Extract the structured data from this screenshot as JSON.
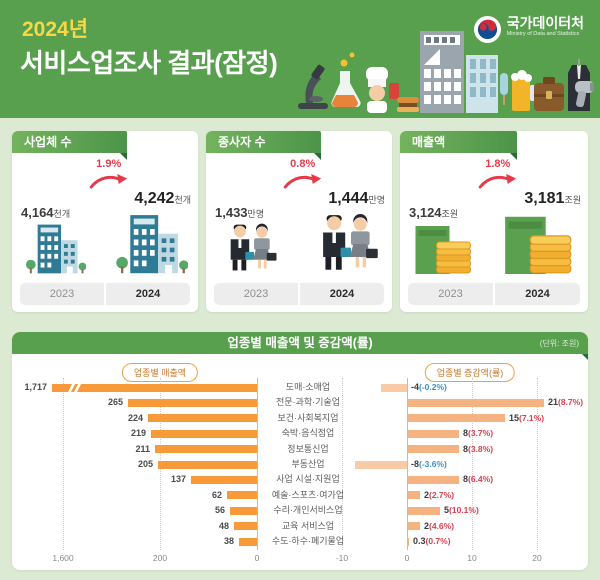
{
  "header": {
    "year_badge": "2024년",
    "title": "서비스업조사 결과(잠정)",
    "logo_name": "국가데이터처",
    "logo_subtitle": "Ministry of Data and Statistics"
  },
  "stat_cards": [
    {
      "title": "사업체 수",
      "change_pct": "1.9%",
      "icon": "buildings",
      "prev_year": "2023",
      "prev_value": "4,164",
      "prev_unit": "천개",
      "curr_year": "2024",
      "curr_value": "4,242",
      "curr_unit": "천개"
    },
    {
      "title": "종사자 수",
      "change_pct": "0.8%",
      "icon": "workers",
      "prev_year": "2023",
      "prev_value": "1,433",
      "prev_unit": "만명",
      "curr_year": "2024",
      "curr_value": "1,444",
      "curr_unit": "만명"
    },
    {
      "title": "매출액",
      "change_pct": "1.8%",
      "icon": "money",
      "prev_year": "2023",
      "prev_value": "3,124",
      "prev_unit": "조원",
      "curr_year": "2024",
      "curr_value": "3,181",
      "curr_unit": "조원"
    }
  ],
  "chart_section": {
    "title": "업종별 매출액 및 증감액(률)",
    "unit_note": "(단위: 조원)",
    "legend_left": "업종별 매출액",
    "legend_right": "업종별 증감액(률)"
  },
  "chart_data": {
    "type": "bar",
    "title": "업종별 매출액 및 증감액(률)",
    "unit": "조원",
    "categories": [
      "도매·소매업",
      "전문·과학·기술업",
      "보건·사회복지업",
      "숙박·음식점업",
      "정보통신업",
      "부동산업",
      "사업 시설·지원업",
      "예술·스포츠·여가업",
      "수리·개인서비스업",
      "교육 서비스업",
      "수도·하수·폐기물업"
    ],
    "series": [
      {
        "name": "업종별 매출액",
        "values": [
          1717,
          265,
          224,
          219,
          211,
          205,
          137,
          62,
          56,
          48,
          38
        ]
      },
      {
        "name": "업종별 증감액",
        "values": [
          -4,
          21,
          15,
          8,
          8,
          -8,
          8,
          2,
          5,
          2,
          0.3
        ]
      },
      {
        "name": "업종별 증감률(%)",
        "values": [
          -0.2,
          8.7,
          7.1,
          3.7,
          3.8,
          -3.6,
          6.4,
          2.7,
          10.1,
          4.6,
          0.7
        ]
      }
    ],
    "rows": [
      {
        "cat": "도매·소매업",
        "sales_label": "1,717",
        "change_label": "-4",
        "pct_label": "(-0.2%)"
      },
      {
        "cat": "전문·과학·기술업",
        "sales_label": "265",
        "change_label": "21",
        "pct_label": "(8.7%)"
      },
      {
        "cat": "보건·사회복지업",
        "sales_label": "224",
        "change_label": "15",
        "pct_label": "(7.1%)"
      },
      {
        "cat": "숙박·음식점업",
        "sales_label": "219",
        "change_label": "8",
        "pct_label": "(3.7%)"
      },
      {
        "cat": "정보통신업",
        "sales_label": "211",
        "change_label": "8",
        "pct_label": "(3.8%)"
      },
      {
        "cat": "부동산업",
        "sales_label": "205",
        "change_label": "-8",
        "pct_label": "(-3.6%)"
      },
      {
        "cat": "사업 시설·지원업",
        "sales_label": "137",
        "change_label": "8",
        "pct_label": "(6.4%)"
      },
      {
        "cat": "예술·스포츠·여가업",
        "sales_label": "62",
        "change_label": "2",
        "pct_label": "(2.7%)"
      },
      {
        "cat": "수리·개인서비스업",
        "sales_label": "56",
        "change_label": "5",
        "pct_label": "(10.1%)"
      },
      {
        "cat": "교육 서비스업",
        "sales_label": "48",
        "change_label": "2",
        "pct_label": "(4.6%)"
      },
      {
        "cat": "수도·하수·폐기물업",
        "sales_label": "38",
        "change_label": "0.3",
        "pct_label": "(0.7%)"
      }
    ],
    "left_axis_ticks": [
      "1,600",
      "200",
      "0"
    ],
    "right_axis_ticks": [
      "-10",
      "0",
      "10",
      "20"
    ],
    "axis_break": true,
    "legend_position": "top",
    "grid": true
  },
  "colors": {
    "header_green": "#58a04e",
    "page_bg": "#dcead3",
    "badge_yellow": "#f8d846",
    "arrow_red": "#e33b4a",
    "sales_bar": "#f89a3a",
    "change_bar_pos": "#f5b382",
    "change_bar_neg": "#f8cba6",
    "pct_pos_text": "#d9404e",
    "pct_neg_text": "#3e8ec6"
  }
}
